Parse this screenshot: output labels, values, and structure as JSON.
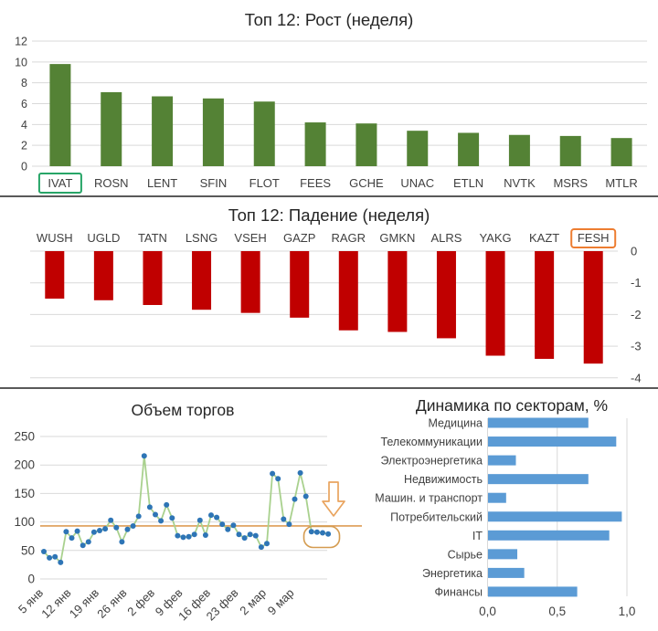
{
  "page": {
    "background": "#ffffff",
    "divider_color": "#595959"
  },
  "chart_data": [
    {
      "id": "growth",
      "type": "bar",
      "title": "Топ 12: Рост (неделя)",
      "categories": [
        "IVAT",
        "ROSN",
        "LENT",
        "SFIN",
        "FLOT",
        "FEES",
        "GCHE",
        "UNAC",
        "ETLN",
        "NVTK",
        "MSRS",
        "MTLR"
      ],
      "values": [
        9.8,
        7.1,
        6.7,
        6.5,
        6.2,
        4.2,
        4.1,
        3.4,
        3.2,
        3.0,
        2.9,
        2.7
      ],
      "ylim": [
        0,
        12
      ],
      "yticks": [
        0,
        2,
        4,
        6,
        8,
        10,
        12
      ],
      "grid": true,
      "legend": "none",
      "bar_color": "#548235",
      "grid_color": "#D9D9D9",
      "highlight": {
        "category": "IVAT",
        "box_color": "#27A567"
      }
    },
    {
      "id": "decline",
      "type": "bar",
      "title": "Топ 12: Падение (неделя)",
      "categories": [
        "WUSH",
        "UGLD",
        "TATN",
        "LSNG",
        "VSEH",
        "GAZP",
        "RAGR",
        "GMKN",
        "ALRS",
        "YAKG",
        "KAZT",
        "FESH"
      ],
      "values": [
        -1.5,
        -1.55,
        -1.7,
        -1.85,
        -1.95,
        -2.1,
        -2.5,
        -2.55,
        -2.75,
        -3.3,
        -3.4,
        -3.55
      ],
      "ylim": [
        -4,
        0
      ],
      "yticks": [
        0,
        -1,
        -2,
        -3,
        -4
      ],
      "axis_side": "right",
      "labels_position": "top",
      "grid": true,
      "bar_color": "#C00000",
      "grid_color": "#D9D9D9",
      "highlight": {
        "category": "FESH",
        "box_color": "#ED7D31"
      }
    },
    {
      "id": "volume",
      "type": "line",
      "title": "Объем торгов",
      "x_tick_labels": [
        "5 янв",
        "12 янв",
        "19 янв",
        "26 янв",
        "2 фев",
        "9 фев",
        "16 фев",
        "23 фев",
        "2 мар",
        "9 мар"
      ],
      "x_tick_every": 5,
      "values": [
        48,
        37,
        39,
        29,
        83,
        72,
        84,
        59,
        65,
        82,
        85,
        88,
        103,
        90,
        65,
        87,
        93,
        110,
        216,
        126,
        113,
        102,
        130,
        107,
        76,
        73,
        74,
        78,
        103,
        77,
        112,
        108,
        96,
        87,
        94,
        78,
        72,
        78,
        76,
        56,
        62,
        185,
        176,
        105,
        96,
        140,
        186,
        145,
        83,
        82,
        81,
        79
      ],
      "ylim": [
        0,
        265
      ],
      "yticks": [
        0,
        50,
        100,
        150,
        200,
        250
      ],
      "grid": true,
      "line_color": "#A9D18E",
      "marker_color": "#2E75B6",
      "grid_color": "#D9D9D9",
      "annotations": {
        "reference_line_y": 93,
        "reference_line_color": "#DD9C55",
        "down_arrow_color": "#E9A45F",
        "callout_box_color": "#D49B4F",
        "callout_box_around_last_points": 4
      }
    },
    {
      "id": "sectors",
      "type": "horizontal-bar",
      "title": "Динамика по секторам, %",
      "categories": [
        "Медицина",
        "Телекоммуникации",
        "Электроэнергетика",
        "Недвижимость",
        "Машин. и транспорт",
        "Потребительский",
        "IT",
        "Сырье",
        "Энергетика",
        "Финансы"
      ],
      "values": [
        0.72,
        0.92,
        0.2,
        0.72,
        0.13,
        0.96,
        0.87,
        0.21,
        0.26,
        0.64
      ],
      "x_tick_labels": [
        "0,0",
        "0,5",
        "1,0"
      ],
      "x_tick_values": [
        0,
        0.5,
        1.0
      ],
      "xlim": [
        0,
        1.05
      ],
      "grid": true,
      "bar_color": "#5B9BD5",
      "grid_color": "#D9D9D9"
    }
  ]
}
